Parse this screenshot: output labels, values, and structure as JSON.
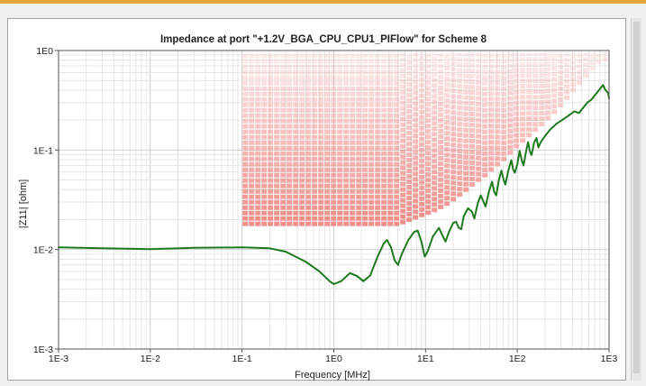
{
  "chart_data": {
    "type": "line",
    "title": "Impedance at port \"+1.2V_BGA_CPU_CPU1_PIFlow\" for Scheme 8",
    "xlabel": "Frequency [MHz]",
    "ylabel": "|Z11| [ohm]",
    "xscale": "log",
    "yscale": "log",
    "xlim": [
      0.001,
      1000
    ],
    "ylim": [
      0.001,
      1
    ],
    "grid": true,
    "x_ticks": [
      {
        "value": 0.001,
        "label": "1E-3"
      },
      {
        "value": 0.01,
        "label": "1E-2"
      },
      {
        "value": 0.1,
        "label": "1E-1"
      },
      {
        "value": 1,
        "label": "1E0"
      },
      {
        "value": 10,
        "label": "1E1"
      },
      {
        "value": 100,
        "label": "1E2"
      },
      {
        "value": 1000,
        "label": "1E3"
      }
    ],
    "y_ticks": [
      {
        "value": 0.001,
        "label": "1E-3"
      },
      {
        "value": 0.01,
        "label": "1E-2"
      },
      {
        "value": 0.1,
        "label": "1E-1"
      },
      {
        "value": 1,
        "label": "1E0"
      }
    ],
    "series": [
      {
        "color": "#1e7a1e",
        "points": [
          [
            0.001,
            0.0105
          ],
          [
            0.003,
            0.0103
          ],
          [
            0.01,
            0.0101
          ],
          [
            0.03,
            0.0104
          ],
          [
            0.1,
            0.0105
          ],
          [
            0.2,
            0.0103
          ],
          [
            0.3,
            0.0095
          ],
          [
            0.5,
            0.0075
          ],
          [
            0.7,
            0.006
          ],
          [
            0.9,
            0.0048
          ],
          [
            1.0,
            0.0045
          ],
          [
            1.2,
            0.0048
          ],
          [
            1.5,
            0.0058
          ],
          [
            1.8,
            0.0054
          ],
          [
            2.1,
            0.0048
          ],
          [
            2.5,
            0.0055
          ],
          [
            3.0,
            0.0085
          ],
          [
            3.5,
            0.0115
          ],
          [
            3.8,
            0.0125
          ],
          [
            4.2,
            0.0105
          ],
          [
            4.6,
            0.0078
          ],
          [
            5.0,
            0.007
          ],
          [
            5.5,
            0.009
          ],
          [
            6.5,
            0.0125
          ],
          [
            7.5,
            0.015
          ],
          [
            8.2,
            0.0155
          ],
          [
            9.0,
            0.012
          ],
          [
            9.8,
            0.0085
          ],
          [
            10.5,
            0.0095
          ],
          [
            12,
            0.0135
          ],
          [
            14,
            0.0165
          ],
          [
            15.5,
            0.0135
          ],
          [
            16.5,
            0.012
          ],
          [
            18,
            0.015
          ],
          [
            20,
            0.0185
          ],
          [
            21.5,
            0.019
          ],
          [
            23,
            0.0165
          ],
          [
            24.5,
            0.016
          ],
          [
            26,
            0.0215
          ],
          [
            29,
            0.026
          ],
          [
            32,
            0.024
          ],
          [
            34,
            0.0205
          ],
          [
            37,
            0.029
          ],
          [
            40,
            0.035
          ],
          [
            43,
            0.03
          ],
          [
            45,
            0.027
          ],
          [
            49,
            0.038
          ],
          [
            53,
            0.048
          ],
          [
            56,
            0.038
          ],
          [
            59,
            0.035
          ],
          [
            63,
            0.05
          ],
          [
            67,
            0.062
          ],
          [
            71,
            0.05
          ],
          [
            74,
            0.045
          ],
          [
            80,
            0.063
          ],
          [
            86,
            0.079
          ],
          [
            90,
            0.064
          ],
          [
            94,
            0.059
          ],
          [
            100,
            0.072
          ],
          [
            106,
            0.098
          ],
          [
            112,
            0.078
          ],
          [
            117,
            0.07
          ],
          [
            124,
            0.095
          ],
          [
            131,
            0.12
          ],
          [
            137,
            0.097
          ],
          [
            143,
            0.089
          ],
          [
            152,
            0.118
          ],
          [
            162,
            0.132
          ],
          [
            170,
            0.106
          ],
          [
            180,
            0.12
          ],
          [
            200,
            0.138
          ],
          [
            230,
            0.162
          ],
          [
            270,
            0.185
          ],
          [
            320,
            0.205
          ],
          [
            370,
            0.225
          ],
          [
            420,
            0.245
          ],
          [
            470,
            0.235
          ],
          [
            520,
            0.265
          ],
          [
            580,
            0.3
          ],
          [
            640,
            0.32
          ],
          [
            700,
            0.355
          ],
          [
            760,
            0.39
          ],
          [
            820,
            0.425
          ],
          [
            860,
            0.45
          ],
          [
            900,
            0.41
          ],
          [
            940,
            0.39
          ],
          [
            980,
            0.37
          ],
          [
            1000,
            0.33
          ]
        ]
      }
    ],
    "target_mask": {
      "color": "#f28a85",
      "x_start": 0.1,
      "x_end": 1000,
      "floor_level": 0.017,
      "boundary": [
        [
          0.1,
          0.017
        ],
        [
          2,
          0.017
        ],
        [
          5,
          0.017
        ],
        [
          8,
          0.02
        ],
        [
          12,
          0.023
        ],
        [
          17,
          0.027
        ],
        [
          22,
          0.032
        ],
        [
          28,
          0.038
        ],
        [
          35,
          0.045
        ],
        [
          45,
          0.053
        ],
        [
          55,
          0.063
        ],
        [
          70,
          0.075
        ],
        [
          85,
          0.09
        ],
        [
          100,
          0.105
        ],
        [
          130,
          0.13
        ],
        [
          170,
          0.16
        ],
        [
          220,
          0.2
        ],
        [
          280,
          0.25
        ],
        [
          350,
          0.32
        ],
        [
          450,
          0.42
        ],
        [
          550,
          0.52
        ],
        [
          650,
          0.62
        ],
        [
          750,
          0.72
        ],
        [
          1000,
          0.8
        ]
      ]
    }
  }
}
